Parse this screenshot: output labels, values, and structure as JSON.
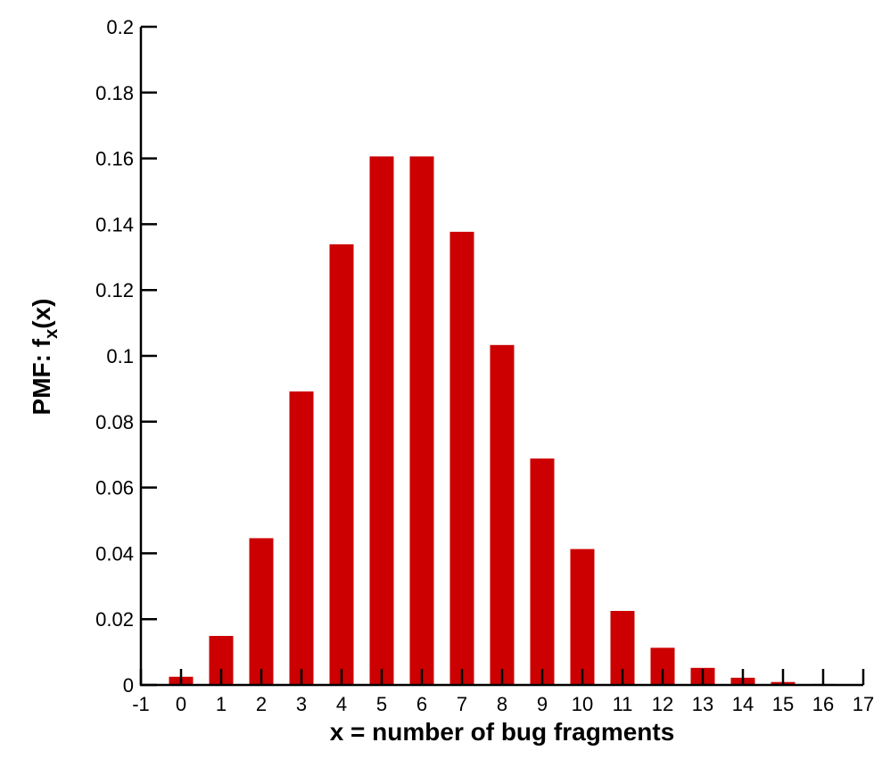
{
  "chart_data": {
    "type": "bar",
    "xlabel": "x = number of bug fragments",
    "ylabel": [
      "PMF: f",
      "x",
      "(x)"
    ],
    "x": [
      0,
      1,
      2,
      3,
      4,
      5,
      6,
      7,
      8,
      9,
      10,
      11,
      12,
      13,
      14,
      15,
      16
    ],
    "values": [
      0.0025,
      0.0149,
      0.0446,
      0.0892,
      0.1339,
      0.1606,
      0.1606,
      0.1377,
      0.1033,
      0.0688,
      0.0413,
      0.0225,
      0.0113,
      0.0052,
      0.0022,
      0.0009,
      0.0003
    ],
    "color": "#cc0000",
    "xlim": [
      -1,
      17
    ],
    "xticks": [
      -1,
      0,
      1,
      2,
      3,
      4,
      5,
      6,
      7,
      8,
      9,
      10,
      11,
      12,
      13,
      14,
      15,
      16,
      17
    ],
    "ylim": [
      0,
      0.2
    ],
    "yticks": [
      0,
      0.02,
      0.04,
      0.06,
      0.08,
      0.1,
      0.12,
      0.14,
      0.16,
      0.18,
      0.2
    ],
    "grid": false
  }
}
